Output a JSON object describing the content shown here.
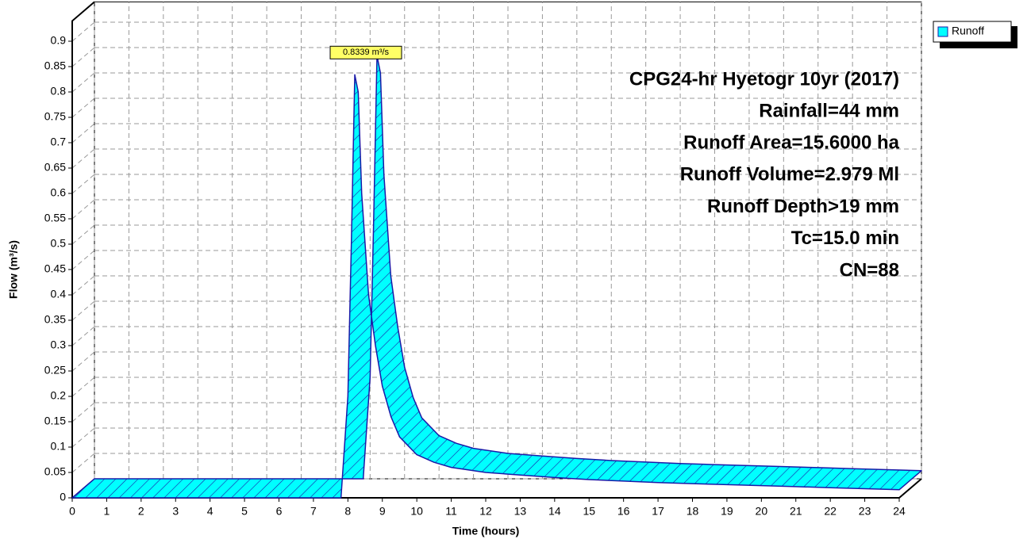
{
  "chart_data": {
    "type": "ribbon",
    "title": "CPG24-hr Hyetogr 10yr (2017)",
    "annotations": [
      "Rainfall=44 mm",
      "Runoff Area=15.6000 ha",
      "Runoff Volume=2.979 Ml",
      "Runoff Depth>19 mm",
      "Tc=15.0 min",
      "CN=88"
    ],
    "peak_label": "0.8339 m³/s",
    "x_label": "Time  (hours)",
    "y_label": "Flow  (m³/s)",
    "x": [
      0,
      7.8,
      8.0,
      8.1,
      8.2,
      8.3,
      8.4,
      8.6,
      8.8,
      9.0,
      9.25,
      9.5,
      10,
      10.5,
      11,
      12,
      13,
      14,
      15,
      16,
      17,
      18,
      19,
      20,
      21,
      22,
      23,
      24
    ],
    "series": [
      {
        "name": "Runoff",
        "color": "#00ffff",
        "values": [
          0,
          0,
          0.2,
          0.5,
          0.8339,
          0.8,
          0.6,
          0.4,
          0.3,
          0.22,
          0.16,
          0.12,
          0.085,
          0.07,
          0.06,
          0.05,
          0.045,
          0.04,
          0.036,
          0.033,
          0.03,
          0.028,
          0.026,
          0.024,
          0.022,
          0.02,
          0.018,
          0.016
        ]
      }
    ],
    "xlim": [
      0,
      24
    ],
    "xticks": [
      0,
      1,
      2,
      3,
      4,
      5,
      6,
      7,
      8,
      9,
      10,
      11,
      12,
      13,
      14,
      15,
      16,
      17,
      18,
      19,
      20,
      21,
      22,
      23,
      24
    ],
    "ylim": [
      0,
      0.94
    ],
    "yticks": [
      0,
      0.05,
      0.1,
      0.15,
      0.2,
      0.25,
      0.3,
      0.35,
      0.4,
      0.45,
      0.5,
      0.55,
      0.6,
      0.65,
      0.7,
      0.75,
      0.8,
      0.85,
      0.9
    ],
    "grid": true,
    "legend": "top-right"
  }
}
